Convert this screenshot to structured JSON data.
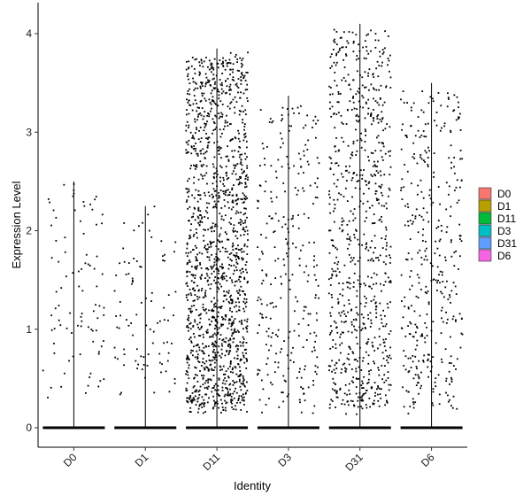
{
  "chart_data": {
    "type": "violin-jitter",
    "title": "",
    "xlabel": "Identity",
    "ylabel": "Expression Level",
    "categories": [
      "D0",
      "D1",
      "D11",
      "D3",
      "D31",
      "D6"
    ],
    "ylim": [
      -0.2,
      4.3
    ],
    "yticks": [
      0,
      1,
      2,
      3,
      4
    ],
    "grid": false,
    "legend_position": "right",
    "series": [
      {
        "name": "D0",
        "color": "#F8766D",
        "max": 2.5,
        "n_expressing": 90
      },
      {
        "name": "D1",
        "color": "#B79F00",
        "max": 2.25,
        "n_expressing": 90
      },
      {
        "name": "D11",
        "color": "#00BA38",
        "max": 3.85,
        "n_expressing": 1500
      },
      {
        "name": "D3",
        "color": "#00BFC4",
        "max": 3.37,
        "n_expressing": 280
      },
      {
        "name": "D31",
        "color": "#619CFF",
        "max": 4.1,
        "n_expressing": 800
      },
      {
        "name": "D6",
        "color": "#F564E3",
        "max": 3.5,
        "n_expressing": 380
      }
    ]
  }
}
